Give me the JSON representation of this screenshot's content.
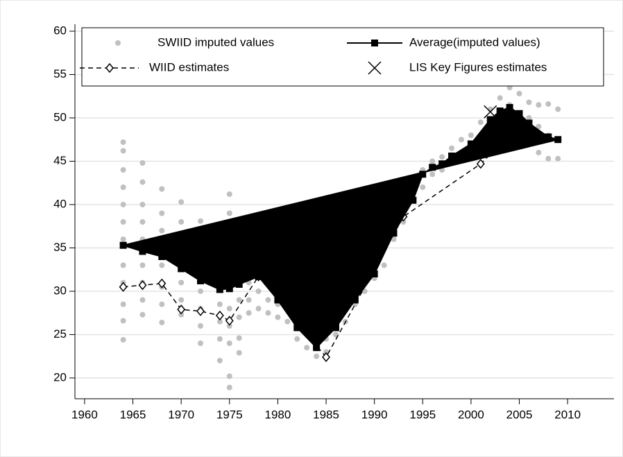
{
  "chart_data": {
    "type": "scatter-line",
    "xlim": [
      1959,
      2014.8
    ],
    "ylim": [
      17.6,
      60.8
    ],
    "xticks": [
      1960,
      1965,
      1970,
      1975,
      1980,
      1985,
      1990,
      1995,
      2000,
      2005,
      2010
    ],
    "yticks": [
      20,
      25,
      30,
      35,
      40,
      45,
      50,
      55,
      60
    ],
    "grid": true,
    "legend": "top",
    "series": [
      {
        "name": "SWIID imputed values",
        "type": "scatter",
        "color": "#c0c0c0",
        "x": [
          1964,
          1964,
          1964,
          1964,
          1964,
          1964,
          1964,
          1964,
          1964,
          1964,
          1964,
          1964,
          1966,
          1966,
          1966,
          1966,
          1966,
          1966,
          1966,
          1966,
          1966,
          1968,
          1968,
          1968,
          1968,
          1968,
          1968,
          1968,
          1968,
          1970,
          1970,
          1970,
          1970,
          1970,
          1970,
          1970,
          1972,
          1972,
          1972,
          1972,
          1972,
          1972,
          1972,
          1974,
          1974,
          1974,
          1974,
          1974,
          1974,
          1974,
          1975,
          1975,
          1975,
          1975,
          1975,
          1975,
          1975,
          1975,
          1975,
          1976,
          1976,
          1976,
          1976,
          1976,
          1977,
          1977,
          1977,
          1978,
          1978,
          1978,
          1979,
          1979,
          1979,
          1980,
          1980,
          1980,
          1981,
          1981,
          1981,
          1982,
          1982,
          1982,
          1983,
          1983,
          1983,
          1984,
          1984,
          1984,
          1985,
          1985,
          1985,
          1986,
          1986,
          1986,
          1987,
          1987,
          1988,
          1988,
          1989,
          1989,
          1990,
          1990,
          1991,
          1991,
          1992,
          1992,
          1993,
          1993,
          1994,
          1994,
          1995,
          1995,
          1996,
          1996,
          1997,
          1997,
          1998,
          1998,
          1999,
          1999,
          2000,
          2000,
          2001,
          2001,
          2002,
          2002,
          2003,
          2003,
          2004,
          2004,
          2004,
          2005,
          2005,
          2005,
          2006,
          2006,
          2006,
          2007,
          2007,
          2007,
          2008,
          2008,
          2008,
          2009,
          2009,
          2009
        ],
        "values": [
          24.4,
          26.6,
          28.5,
          31,
          33,
          36,
          38,
          40,
          42,
          44,
          46.2,
          47.2,
          27.3,
          29,
          31,
          33,
          36,
          38,
          40,
          42.6,
          44.8,
          26.4,
          28.5,
          30.5,
          33,
          35,
          37,
          39,
          41.8,
          27.3,
          29,
          31,
          34,
          36,
          38,
          40.3,
          24,
          26,
          28,
          30,
          33,
          35.5,
          38.1,
          22,
          24.5,
          26.5,
          28.5,
          31,
          33,
          36,
          18.9,
          20.2,
          24,
          26,
          28,
          31,
          34,
          39,
          41.2,
          22.9,
          24.6,
          27,
          29,
          31,
          27.5,
          29,
          31,
          28,
          30,
          32,
          27.5,
          29,
          31,
          27,
          28.5,
          30,
          26.5,
          28,
          29.5,
          24.5,
          26,
          27.5,
          23.5,
          25,
          26.5,
          22.5,
          23.5,
          25,
          23,
          24.5,
          26,
          25,
          26,
          27,
          26.5,
          28,
          28.5,
          29.5,
          30,
          31,
          31.5,
          32.5,
          33,
          35,
          36,
          37.5,
          38,
          39.5,
          40.5,
          43,
          42,
          44,
          43.5,
          45,
          44,
          45.5,
          45,
          46.5,
          46,
          47.5,
          46.5,
          48,
          47.5,
          49.5,
          48.5,
          51,
          49.5,
          52.3,
          49,
          51.5,
          53.5,
          48,
          50.5,
          52.8,
          47,
          50,
          51.8,
          46,
          49,
          51.5,
          45.3,
          48,
          51.6,
          45.3,
          47.5,
          51
        ]
      },
      {
        "name": "Average(imputed values)",
        "type": "line",
        "color": "#000000",
        "x": [
          1964,
          1966,
          1968,
          1970,
          1972,
          1974,
          1975,
          1976,
          1978,
          1980,
          1982,
          1984,
          1986,
          1988,
          1990,
          1992,
          1994,
          1995,
          1996,
          1997,
          1998,
          2000,
          2002,
          2003,
          2004,
          2005,
          2006,
          2008,
          2009
        ],
        "values": [
          35.3,
          34.6,
          34,
          32.6,
          31.2,
          30.2,
          30.3,
          30.8,
          31.7,
          29,
          25.8,
          23.5,
          25.8,
          29,
          32,
          36.7,
          40.5,
          43.5,
          44.3,
          44.7,
          45.6,
          47,
          49.8,
          50.8,
          51.2,
          50.5,
          49.4,
          47.8,
          47.5
        ]
      },
      {
        "name": "WIID estimates",
        "type": "dashed",
        "color": "#000000",
        "x": [
          1964,
          1966,
          1968,
          1970,
          1972,
          1974,
          1975,
          1978,
          1985,
          1993,
          2001,
          2004
        ],
        "values": [
          30.5,
          30.7,
          30.9,
          27.9,
          27.7,
          27.2,
          26.6,
          31.7,
          22.4,
          38.6,
          44.7,
          48
        ]
      },
      {
        "name": "LIS Key Figures estimates",
        "type": "cross",
        "color": "#000000",
        "x": [
          2002
        ],
        "values": [
          50.7
        ]
      }
    ]
  }
}
